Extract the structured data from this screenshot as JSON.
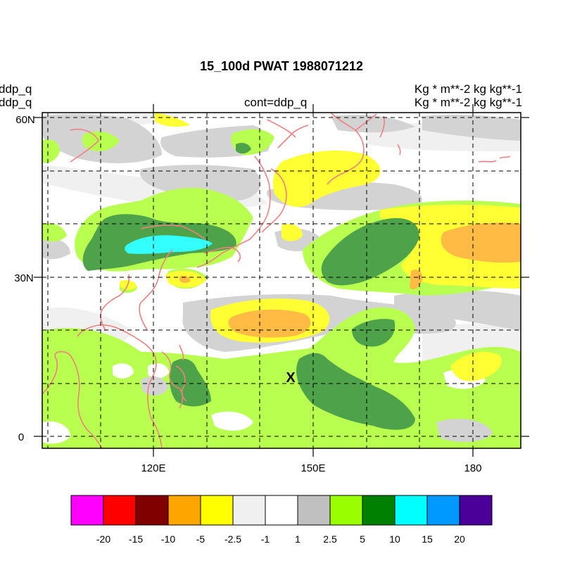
{
  "title": "15_100d PWAT  1988071212",
  "left_labels": [
    "ddp_q",
    "ddp_q"
  ],
  "center_label": "cont=ddp_q",
  "right_labels": [
    "Kg  * m**-2 kg kg**-1",
    "Kg  * m**-2 kg kg**-1"
  ],
  "lat_ticks": [
    "60N",
    "30N",
    "0"
  ],
  "lon_ticks": [
    "120E",
    "150E",
    "180"
  ],
  "marker": "X",
  "colorbar": {
    "colors": [
      "#ff00ff",
      "#ff0000",
      "#800000",
      "#ffa500",
      "#ffff00",
      "#f0f0f0",
      "#ffffff",
      "#c0c0c0",
      "#99ff00",
      "#008000",
      "#00ffff",
      "#0099ff",
      "#4b0099"
    ],
    "labels": [
      "-20",
      "-15",
      "-10",
      "-5",
      "-2.5",
      "-1",
      "1",
      "2.5",
      "5",
      "10",
      "15",
      "20"
    ]
  },
  "palette": {
    "light_gray": "#f0f0f0",
    "gray": "#d3d3d3",
    "yellow": "#ffff33",
    "orange": "#ffbb44",
    "light_green": "#b8ff50",
    "dark_green": "#4ea24a",
    "cyan": "#33ffff",
    "coast": "#f08080"
  }
}
